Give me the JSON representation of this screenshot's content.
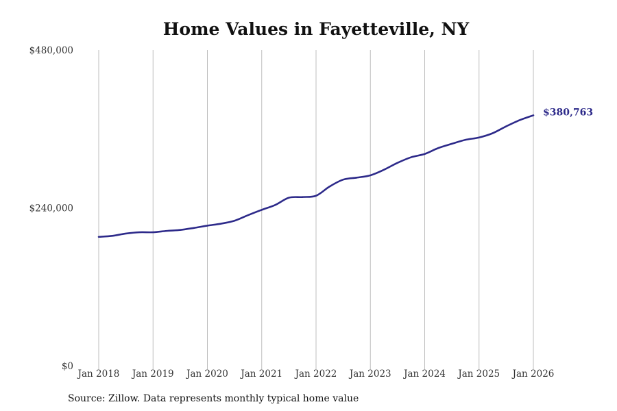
{
  "chart_data": {
    "type": "line",
    "title": "Home Values in Fayetteville, NY",
    "source": "Source: Zillow. Data represents monthly typical home value",
    "xlabel": "",
    "ylabel": "",
    "ylim": [
      0,
      480000
    ],
    "y_ticks": [
      0,
      240000,
      480000
    ],
    "y_tick_labels": [
      "$0",
      "$240,000",
      "$480,000"
    ],
    "x_range": [
      2018,
      2026
    ],
    "x_ticks": [
      2018,
      2019,
      2020,
      2021,
      2022,
      2023,
      2024,
      2025,
      2026
    ],
    "x_tick_labels": [
      "Jan 2018",
      "Jan 2019",
      "Jan 2020",
      "Jan 2021",
      "Jan 2022",
      "Jan 2023",
      "Jan 2024",
      "Jan 2025",
      "Jan 2026"
    ],
    "grid": "vertical",
    "line_color": "#2d2a8a",
    "end_label": "$380,763",
    "series": [
      {
        "name": "Typical home value",
        "x": [
          2018.0,
          2018.25,
          2018.5,
          2018.75,
          2019.0,
          2019.25,
          2019.5,
          2019.75,
          2020.0,
          2020.25,
          2020.5,
          2020.75,
          2021.0,
          2021.25,
          2021.5,
          2021.75,
          2022.0,
          2022.25,
          2022.5,
          2022.75,
          2023.0,
          2023.25,
          2023.5,
          2023.75,
          2024.0,
          2024.25,
          2024.5,
          2024.75,
          2025.0,
          2025.25,
          2025.5,
          2025.75,
          2026.0
        ],
        "values": [
          196000,
          197500,
          201000,
          203000,
          203000,
          205000,
          206500,
          209500,
          213000,
          216000,
          220500,
          229000,
          237000,
          244500,
          255500,
          256500,
          258500,
          272500,
          283000,
          286000,
          289500,
          298000,
          308500,
          317000,
          322000,
          331000,
          337500,
          343500,
          347000,
          353500,
          364000,
          373500,
          380763
        ]
      }
    ]
  }
}
